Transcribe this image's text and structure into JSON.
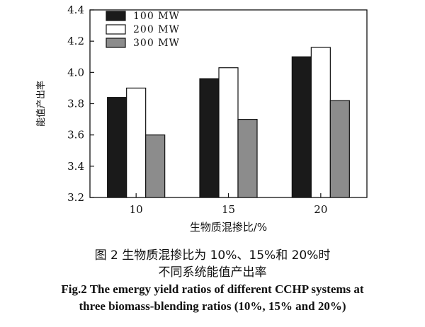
{
  "chart_data": {
    "type": "bar",
    "xlabel": "生物质混掺比/%",
    "ylabel": "能值产出率",
    "categories": [
      "10",
      "15",
      "20"
    ],
    "ylim": [
      3.2,
      4.4
    ],
    "yticks": [
      "3.2",
      "3.4",
      "3.6",
      "3.8",
      "4.0",
      "4.2",
      "4.4"
    ],
    "legend_position": "top-left",
    "series": [
      {
        "name": "100 MW",
        "values": [
          3.84,
          3.96,
          4.1
        ],
        "color": "#1a1a1a"
      },
      {
        "name": "200 MW",
        "values": [
          3.9,
          4.03,
          4.16
        ],
        "color": "#ffffff"
      },
      {
        "name": "300 MW",
        "values": [
          3.6,
          3.7,
          3.82
        ],
        "color": "#8c8c8c"
      }
    ]
  },
  "caption": {
    "cn_line1": "图 2  生物质混掺比为 10%、15%和 20%时",
    "cn_line2": "不同系统能值产出率",
    "en_line1": "Fig.2 The emergy yield ratios of different CCHP systems at",
    "en_line2": "three biomass-blending ratios (10%, 15% and 20%)"
  }
}
